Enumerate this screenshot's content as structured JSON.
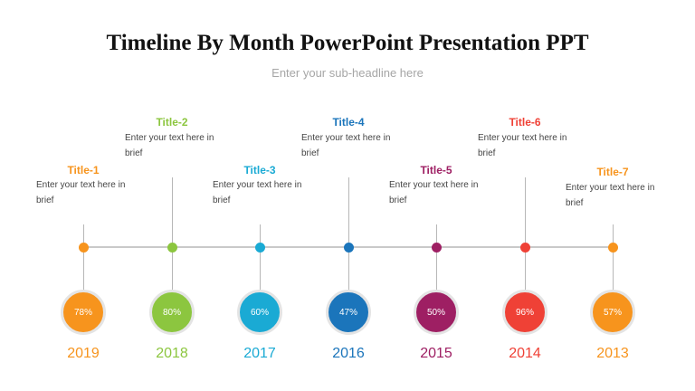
{
  "title": "Timeline By Month PowerPoint Presentation PPT",
  "subtitle": "Enter your sub-headline here",
  "items": [
    {
      "title": "Title-1",
      "text": "Enter your text here in brief",
      "percent": "78%",
      "year": "2019",
      "color": "#f7941d",
      "position": "lower"
    },
    {
      "title": "Title-2",
      "text": "Enter your text here in brief",
      "percent": "80%",
      "year": "2018",
      "color": "#8cc63f",
      "position": "upper"
    },
    {
      "title": "Title-3",
      "text": "Enter your text here in brief",
      "percent": "60%",
      "year": "2017",
      "color": "#1aaad4",
      "position": "lower"
    },
    {
      "title": "Title-4",
      "text": "Enter your text here in brief",
      "percent": "47%",
      "year": "2016",
      "color": "#1b75bb",
      "position": "upper"
    },
    {
      "title": "Title-5",
      "text": "Enter your text here in brief",
      "percent": "50%",
      "year": "2015",
      "color": "#9e1f63",
      "position": "lower"
    },
    {
      "title": "Title-6",
      "text": "Enter your text here in brief",
      "percent": "96%",
      "year": "2014",
      "color": "#ef4136",
      "position": "upper"
    },
    {
      "title": "Title-7",
      "text": "Enter your text here in brief",
      "percent": "57%",
      "year": "2013",
      "color": "#f7941d",
      "position": "lower"
    }
  ]
}
